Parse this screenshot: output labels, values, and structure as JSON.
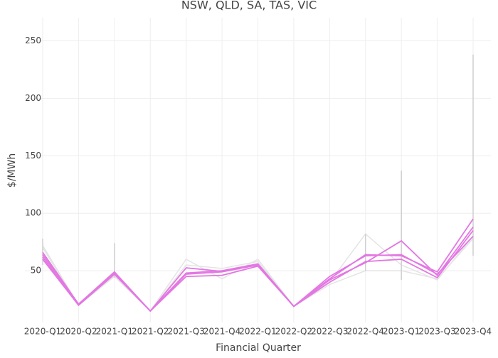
{
  "chart_data": {
    "type": "line",
    "title": "NSW, QLD, SA, TAS, VIC",
    "x_label": "Financial Quarter",
    "y_label": "$/MWh",
    "categories": [
      "2020-Q1",
      "2020-Q2",
      "2021-Q1",
      "2021-Q2",
      "2021-Q3",
      "2021-Q4",
      "2022-Q1",
      "2022-Q2",
      "2022-Q3",
      "2022-Q4",
      "2023-Q1",
      "2023-Q3",
      "2023-Q4"
    ],
    "series": [
      {
        "color": "#e377e3",
        "values": [
          66,
          21,
          49,
          15,
          52.5,
          49.5,
          56,
          19,
          43,
          64,
          63,
          49,
          95
        ]
      },
      {
        "color": "#e377e3",
        "values": [
          60,
          20,
          48,
          15,
          47,
          49,
          55,
          19,
          42,
          57,
          76,
          46,
          88
        ]
      },
      {
        "color": "#e377e3",
        "values": [
          62,
          20,
          47,
          15,
          45,
          46,
          54,
          19,
          40,
          58,
          60,
          44,
          85
        ]
      },
      {
        "color": "#e377e3",
        "values": [
          64,
          21,
          48,
          15,
          48,
          50,
          56,
          19,
          45,
          63,
          64,
          47,
          80
        ]
      }
    ],
    "background_series": [
      {
        "color": "#e4e4e4",
        "values": [
          70,
          20,
          45,
          15,
          60,
          43,
          60,
          19,
          40,
          82,
          55,
          42,
          80
        ]
      },
      {
        "color": "#e4e4e4",
        "values": [
          72,
          20,
          46,
          15,
          55,
          52,
          58,
          19,
          38,
          50,
          50,
          43,
          78
        ]
      }
    ],
    "ranges": {
      "color": "#cfcfcf",
      "low": [
        55,
        null,
        44,
        null,
        null,
        null,
        null,
        null,
        null,
        50,
        42,
        null,
        63
      ],
      "high": [
        78,
        null,
        74,
        null,
        null,
        null,
        null,
        null,
        null,
        82,
        137,
        null,
        238
      ]
    },
    "ylim": [
      5,
      270
    ],
    "yticks": [
      50,
      100,
      150,
      200,
      250
    ],
    "grid": true
  }
}
